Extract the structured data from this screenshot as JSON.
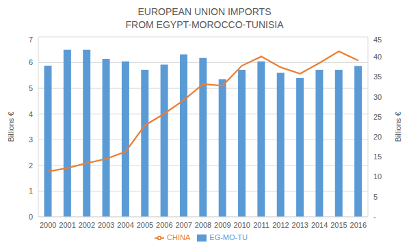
{
  "chart_data": {
    "type": "bar",
    "title": "EUROPEAN UNION IMPORTS\nFROM EGYPT-MOROCCO-TUNISIA",
    "categories": [
      "2000",
      "2001",
      "2002",
      "2003",
      "2004",
      "2005",
      "2006",
      "2007",
      "2008",
      "2009",
      "2010",
      "2011",
      "2012",
      "2013",
      "2014",
      "2015",
      "2016"
    ],
    "series": [
      {
        "name": "EG-MO-TU",
        "type": "bar",
        "color": "#5B9BD5",
        "values": [
          5.88,
          6.5,
          6.5,
          6.15,
          6.05,
          5.72,
          5.92,
          6.32,
          6.18,
          5.35,
          5.72,
          6.05,
          5.6,
          5.4,
          5.72,
          5.72,
          5.87
        ]
      },
      {
        "name": "CHINA",
        "type": "line",
        "axis": "y2",
        "color": "#ED7D31",
        "marker": "none",
        "values": [
          11.3,
          12.2,
          13.4,
          14.5,
          16.3,
          22.9,
          25.8,
          29.2,
          33.2,
          32.8,
          37.8,
          40.1,
          37.4,
          35.8,
          38.5,
          41.4,
          39.1
        ]
      }
    ],
    "y_label": "Billions €",
    "y2_label": "Billions €",
    "ylim": [
      0,
      7
    ],
    "yticks": [
      0,
      1,
      2,
      3,
      4,
      5,
      6,
      7
    ],
    "y2lim": [
      0,
      45
    ],
    "y2ticks": [
      {
        "value": 0,
        "label": "-"
      },
      5,
      10,
      15,
      20,
      25,
      30,
      35,
      40,
      45
    ],
    "grid": true,
    "legend": "bottom"
  }
}
